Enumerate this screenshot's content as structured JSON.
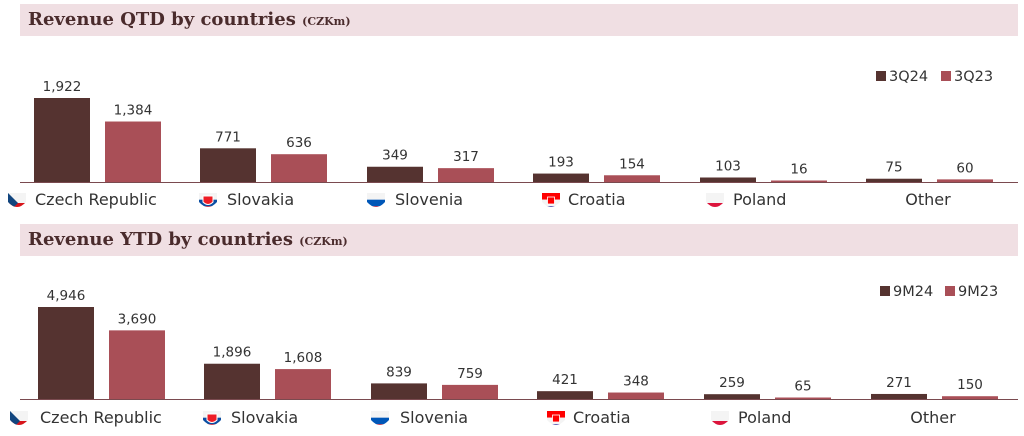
{
  "colors": {
    "current": "#553330",
    "previous": "#a94f57",
    "banner": "#f0dfe3",
    "title": "#4a2b2c",
    "axis": "#7a4a4f"
  },
  "chart_data": [
    {
      "type": "bar",
      "title": "Revenue QTD by countries",
      "unit": "(CZKm)",
      "categories": [
        "Czech Republic",
        "Slovakia",
        "Slovenia",
        "Croatia",
        "Poland",
        "Other"
      ],
      "flags": [
        "czech-flag-icon",
        "slovakia-flag-icon",
        "slovenia-flag-icon",
        "croatia-flag-icon",
        "poland-flag-icon",
        ""
      ],
      "series": [
        {
          "name": "3Q24",
          "values": [
            1922,
            771,
            349,
            193,
            103,
            75
          ],
          "labels": [
            "1,922",
            "771",
            "349",
            "193",
            "103",
            "75"
          ]
        },
        {
          "name": "3Q23",
          "values": [
            1384,
            636,
            317,
            154,
            16,
            60
          ],
          "labels": [
            "1,384",
            "636",
            "317",
            "154",
            "16",
            "60"
          ]
        }
      ],
      "legend_position": "top-right",
      "ylim": [
        0,
        1922
      ],
      "grid": false
    },
    {
      "type": "bar",
      "title": "Revenue YTD by countries",
      "unit": "(CZKm)",
      "categories": [
        "Czech Republic",
        "Slovakia",
        "Slovenia",
        "Croatia",
        "Poland",
        "Other"
      ],
      "flags": [
        "czech-flag-icon",
        "slovakia-flag-icon",
        "slovenia-flag-icon",
        "croatia-flag-icon",
        "poland-flag-icon",
        ""
      ],
      "series": [
        {
          "name": "9M24",
          "values": [
            4946,
            1896,
            839,
            421,
            259,
            271
          ],
          "labels": [
            "4,946",
            "1,896",
            "839",
            "421",
            "259",
            "271"
          ]
        },
        {
          "name": "9M23",
          "values": [
            3690,
            1608,
            759,
            348,
            65,
            150
          ],
          "labels": [
            "3,690",
            "1,608",
            "759",
            "348",
            "65",
            "150"
          ]
        }
      ],
      "legend_position": "top-right",
      "ylim": [
        0,
        4946
      ],
      "grid": false
    }
  ]
}
